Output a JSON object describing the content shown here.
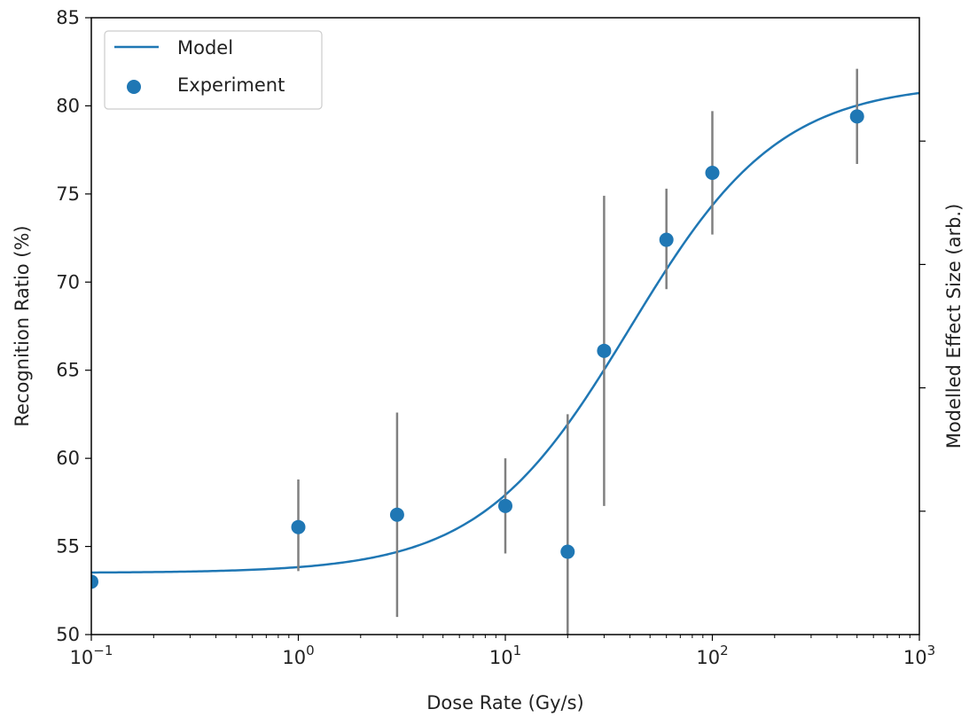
{
  "chart_data": {
    "type": "scatter",
    "title": "",
    "xlabel": "Dose Rate (Gy/s)",
    "ylabel": "Recognition Ratio (%)",
    "y2label": "Modelled Effect Size (arb.)",
    "xscale": "log",
    "xlim": [
      0.1,
      1000
    ],
    "ylim": [
      50,
      85
    ],
    "x_ticks": [
      {
        "value": 0.1,
        "base": "10",
        "exp": "−1"
      },
      {
        "value": 1,
        "base": "10",
        "exp": "0"
      },
      {
        "value": 10,
        "base": "10",
        "exp": "1"
      },
      {
        "value": 100,
        "base": "10",
        "exp": "2"
      },
      {
        "value": 1000,
        "base": "10",
        "exp": "3"
      }
    ],
    "y_ticks": [
      "50",
      "55",
      "60",
      "65",
      "70",
      "75",
      "80",
      "85"
    ],
    "y2_tick_count": 4,
    "grid": false,
    "legend_position": "top-left",
    "series": [
      {
        "name": "Model",
        "kind": "line",
        "color": "#1f77b4",
        "model": {
          "min": 53.5,
          "max": 81.3,
          "midpoint": 40,
          "slope": 1.2
        }
      },
      {
        "name": "Experiment",
        "kind": "scatter",
        "color": "#1f77b4",
        "error_color": "#808080",
        "points": [
          {
            "x": 0.1,
            "y": 53.0,
            "err_low": null,
            "err_high": null
          },
          {
            "x": 1,
            "y": 56.1,
            "err_low": 53.6,
            "err_high": 58.8
          },
          {
            "x": 3,
            "y": 56.8,
            "err_low": 51.0,
            "err_high": 62.6
          },
          {
            "x": 10,
            "y": 57.3,
            "err_low": 54.6,
            "err_high": 60.0
          },
          {
            "x": 20,
            "y": 54.7,
            "err_low": 50.0,
            "err_high": 62.5
          },
          {
            "x": 30,
            "y": 66.1,
            "err_low": 57.3,
            "err_high": 74.9
          },
          {
            "x": 60,
            "y": 72.4,
            "err_low": 69.6,
            "err_high": 75.3
          },
          {
            "x": 100,
            "y": 76.2,
            "err_low": 72.7,
            "err_high": 79.7
          },
          {
            "x": 500,
            "y": 79.4,
            "err_low": 76.7,
            "err_high": 82.1
          }
        ]
      }
    ]
  }
}
